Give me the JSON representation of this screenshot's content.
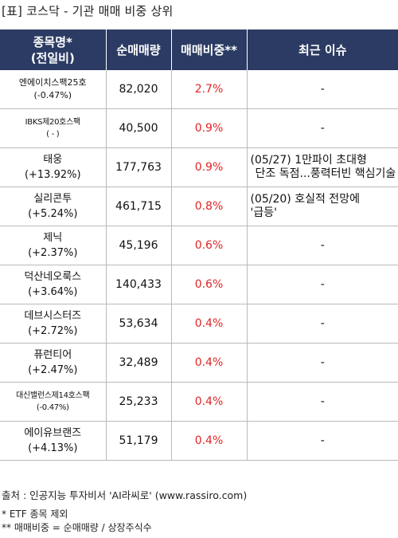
{
  "title": "[표] 코스닥 - 기관 매매 비중 상위",
  "headers": {
    "name_line1": "종목명*",
    "name_line2": "(전일비)",
    "net_volume": "순매매량",
    "ratio": "매매비중**",
    "issue": "최근 이슈"
  },
  "rows": [
    {
      "name": "엔에이치스팩25호",
      "change": "(-0.47%)",
      "volume": "82,020",
      "ratio": "2.7%",
      "issue1": "-",
      "issue2": ""
    },
    {
      "name": "IBKS제20호스팩",
      "change": "( - )",
      "volume": "40,500",
      "ratio": "0.9%",
      "issue1": "-",
      "issue2": ""
    },
    {
      "name": "태웅",
      "change": "(+13.92%)",
      "volume": "177,763",
      "ratio": "0.9%",
      "issue1": "(05/27) 1만파이 초대형",
      "issue2": "단조 독점...풍력터빈 핵심기술"
    },
    {
      "name": "실리콘투",
      "change": "(+5.24%)",
      "volume": "461,715",
      "ratio": "0.8%",
      "issue1": "(05/20) 호실적 전망에",
      "issue2": "'급등'"
    },
    {
      "name": "제닉",
      "change": "(+2.37%)",
      "volume": "45,196",
      "ratio": "0.6%",
      "issue1": "-",
      "issue2": ""
    },
    {
      "name": "덕산네오룩스",
      "change": "(+3.64%)",
      "volume": "140,433",
      "ratio": "0.6%",
      "issue1": "-",
      "issue2": ""
    },
    {
      "name": "데브시스터즈",
      "change": "(+2.72%)",
      "volume": "53,634",
      "ratio": "0.4%",
      "issue1": "-",
      "issue2": ""
    },
    {
      "name": "퓨런티어",
      "change": "(+2.47%)",
      "volume": "32,489",
      "ratio": "0.4%",
      "issue1": "-",
      "issue2": ""
    },
    {
      "name": "대신밸런스제14호스팩",
      "change": "(-0.47%)",
      "volume": "25,233",
      "ratio": "0.4%",
      "issue1": "-",
      "issue2": ""
    },
    {
      "name": "에이유브랜즈",
      "change": "(+4.13%)",
      "volume": "51,179",
      "ratio": "0.4%",
      "issue1": "-",
      "issue2": ""
    }
  ],
  "footer": {
    "source": "출처 : 인공지능 투자비서 'AI라씨로' (www.rassiro.com)",
    "note1": "* ETF 종목 제외",
    "note2": "** 매매비중 = 순매매량 / 상장주식수"
  },
  "colors": {
    "header_bg": "#2b3b63",
    "ratio_text": "#e02424"
  }
}
